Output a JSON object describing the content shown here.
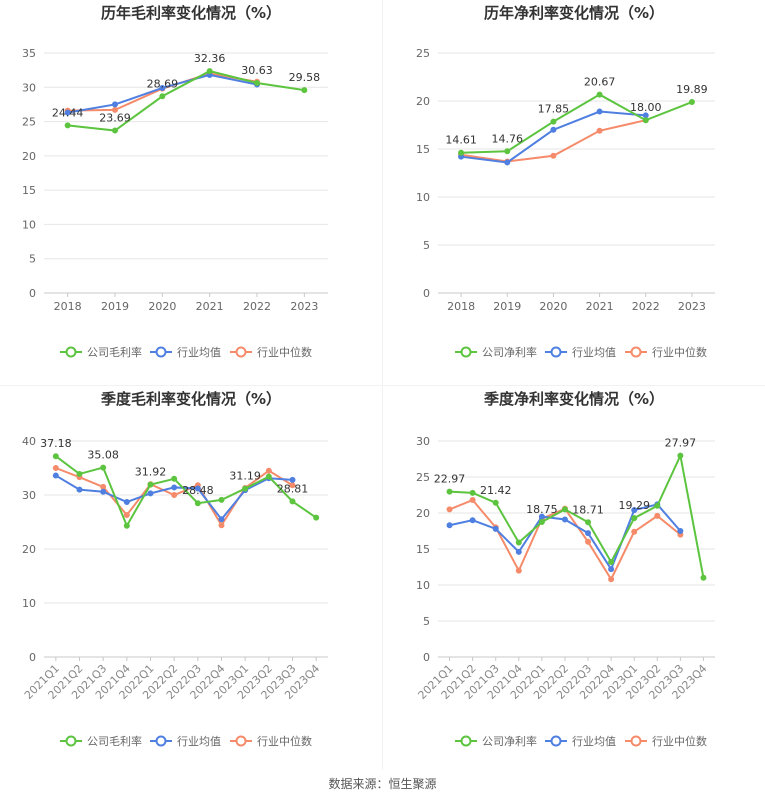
{
  "source": "数据来源：恒生聚源",
  "colors": {
    "company": "#5cc43f",
    "avg": "#4f7fe0",
    "median": "#f58b6a",
    "grid": "#e6e6e6",
    "axis": "#c8c8c8",
    "text": "#666666",
    "title": "#333333"
  },
  "chart_data": [
    {
      "type": "line",
      "title": "历年毛利率变化情况（%）",
      "categories": [
        "2018",
        "2019",
        "2020",
        "2021",
        "2022",
        "2023"
      ],
      "ylim": [
        0,
        35
      ],
      "yticks": [
        0,
        5,
        10,
        15,
        20,
        25,
        30,
        35
      ],
      "series": [
        {
          "name": "公司毛利率",
          "values": [
            24.44,
            23.69,
            28.69,
            32.36,
            30.63,
            29.58
          ],
          "labels": [
            "24.44",
            "23.69",
            "28.69",
            "32.36",
            "30.63",
            "29.58"
          ]
        },
        {
          "name": "行业均值",
          "values": [
            26.3,
            27.5,
            29.9,
            31.8,
            30.4,
            null
          ]
        },
        {
          "name": "行业中位数",
          "values": [
            26.6,
            26.7,
            29.8,
            32.0,
            30.8,
            null
          ]
        }
      ],
      "legend": "bottom"
    },
    {
      "type": "line",
      "title": "历年净利率变化情况（%）",
      "categories": [
        "2018",
        "2019",
        "2020",
        "2021",
        "2022",
        "2023"
      ],
      "ylim": [
        0,
        25
      ],
      "yticks": [
        0,
        5,
        10,
        15,
        20,
        25
      ],
      "series": [
        {
          "name": "公司净利率",
          "values": [
            14.61,
            14.76,
            17.85,
            20.67,
            18.0,
            19.89
          ],
          "labels": [
            "14.61",
            "14.76",
            "17.85",
            "20.67",
            "18.00",
            "19.89"
          ]
        },
        {
          "name": "行业均值",
          "values": [
            14.2,
            13.6,
            17.0,
            18.9,
            18.5,
            null
          ]
        },
        {
          "name": "行业中位数",
          "values": [
            14.4,
            13.7,
            14.3,
            16.9,
            18.0,
            null
          ]
        }
      ],
      "legend": "bottom"
    },
    {
      "type": "line",
      "title": "季度毛利率变化情况（%）",
      "categories": [
        "2021Q1",
        "2021Q2",
        "2021Q3",
        "2021Q4",
        "2022Q1",
        "2022Q2",
        "2022Q3",
        "2022Q4",
        "2023Q1",
        "2023Q2",
        "2023Q3",
        "2023Q4"
      ],
      "ylim": [
        0,
        40
      ],
      "yticks": [
        0,
        10,
        20,
        30,
        40
      ],
      "series": [
        {
          "name": "公司毛利率",
          "values": [
            37.18,
            33.9,
            35.08,
            24.3,
            31.92,
            33.0,
            28.48,
            29.1,
            31.19,
            33.4,
            28.81,
            25.8
          ],
          "labels": [
            "37.18",
            null,
            "35.08",
            null,
            "31.92",
            null,
            "28.48",
            null,
            "31.19",
            null,
            "28.81",
            null
          ]
        },
        {
          "name": "行业均值",
          "values": [
            33.6,
            31.0,
            30.6,
            28.7,
            30.3,
            31.4,
            31.2,
            25.5,
            30.9,
            33.1,
            32.8,
            null
          ]
        },
        {
          "name": "行业中位数",
          "values": [
            35.0,
            33.3,
            31.5,
            26.3,
            32.0,
            30.0,
            31.8,
            24.4,
            31.3,
            34.5,
            31.8,
            null
          ]
        }
      ],
      "legend": "bottom"
    },
    {
      "type": "line",
      "title": "季度净利率变化情况（%）",
      "categories": [
        "2021Q1",
        "2021Q2",
        "2021Q3",
        "2021Q4",
        "2022Q1",
        "2022Q2",
        "2022Q3",
        "2022Q4",
        "2023Q1",
        "2023Q2",
        "2023Q3",
        "2023Q4"
      ],
      "ylim": [
        0,
        30
      ],
      "yticks": [
        0,
        5,
        10,
        15,
        20,
        25,
        30
      ],
      "series": [
        {
          "name": "公司净利率",
          "values": [
            22.97,
            22.8,
            21.42,
            15.9,
            18.75,
            20.5,
            18.71,
            13.2,
            19.29,
            21.0,
            27.97,
            11.0
          ],
          "labels": [
            "22.97",
            null,
            "21.42",
            null,
            "18.75",
            null,
            "18.71",
            null,
            "19.29",
            null,
            "27.97",
            null
          ]
        },
        {
          "name": "行业均值",
          "values": [
            18.3,
            19.0,
            17.8,
            14.6,
            19.5,
            19.1,
            17.2,
            12.2,
            20.4,
            21.2,
            17.5,
            null
          ]
        },
        {
          "name": "行业中位数",
          "values": [
            20.5,
            21.8,
            18.0,
            12.0,
            19.2,
            20.6,
            16.0,
            10.8,
            17.4,
            19.6,
            17.0,
            null
          ]
        }
      ],
      "legend": "bottom"
    }
  ]
}
